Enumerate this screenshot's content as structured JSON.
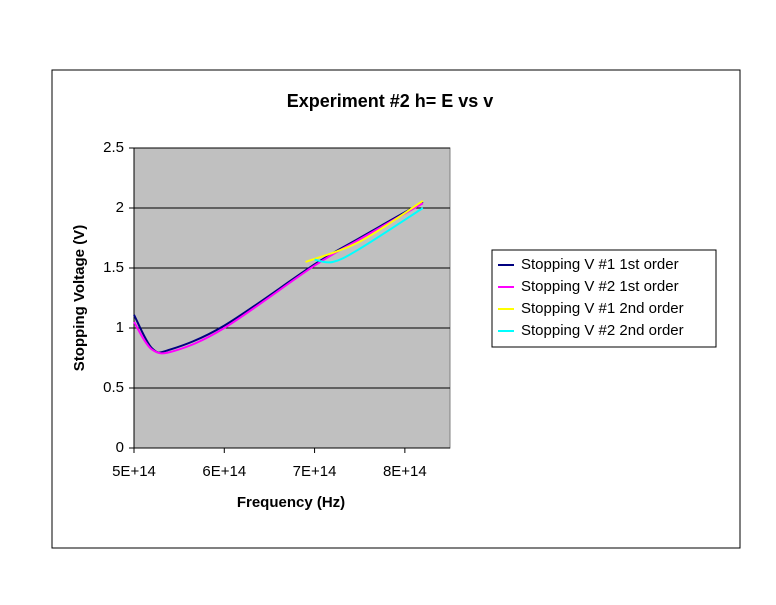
{
  "chart_data": {
    "type": "line",
    "title": "Experiment #2  h= E vs v",
    "x_label": "Frequency (Hz)",
    "y_label": "Stopping Voltage (V)",
    "xlim": [
      500000000000000,
      850000000000000
    ],
    "xticks": [
      {
        "value": 500000000000000,
        "label": "5E+14"
      },
      {
        "value": 600000000000000,
        "label": "6E+14"
      },
      {
        "value": 700000000000000,
        "label": "7E+14"
      },
      {
        "value": 800000000000000,
        "label": "8E+14"
      }
    ],
    "ylim": [
      0,
      2.5
    ],
    "yticks": [
      0,
      0.5,
      1,
      1.5,
      2,
      2.5
    ],
    "grid": true,
    "legend": "right",
    "series": [
      {
        "name": "Stopping V #1 1st order",
        "color": "#000080",
        "x": [
          500000000000000,
          520000000000000,
          540000000000000,
          600000000000000,
          700000000000000,
          750000000000000,
          820000000000000
        ],
        "values": [
          1.11,
          0.83,
          0.82,
          1.02,
          1.53,
          1.75,
          2.05
        ]
      },
      {
        "name": "Stopping V #2 1st order",
        "color": "#ff00ff",
        "x": [
          500000000000000,
          520000000000000,
          545000000000000,
          600000000000000,
          700000000000000,
          750000000000000,
          820000000000000
        ],
        "values": [
          1.05,
          0.82,
          0.81,
          1.0,
          1.52,
          1.74,
          2.04
        ]
      },
      {
        "name": "Stopping V #1 2nd order",
        "color": "#ffff00",
        "x": [
          690000000000000,
          750000000000000,
          820000000000000
        ],
        "values": [
          1.55,
          1.72,
          2.06
        ]
      },
      {
        "name": "Stopping V #2 2nd order",
        "color": "#00ffff",
        "x": [
          700000000000000,
          720000000000000,
          750000000000000,
          820000000000000
        ],
        "values": [
          1.57,
          1.55,
          1.66,
          2.0
        ]
      }
    ]
  }
}
